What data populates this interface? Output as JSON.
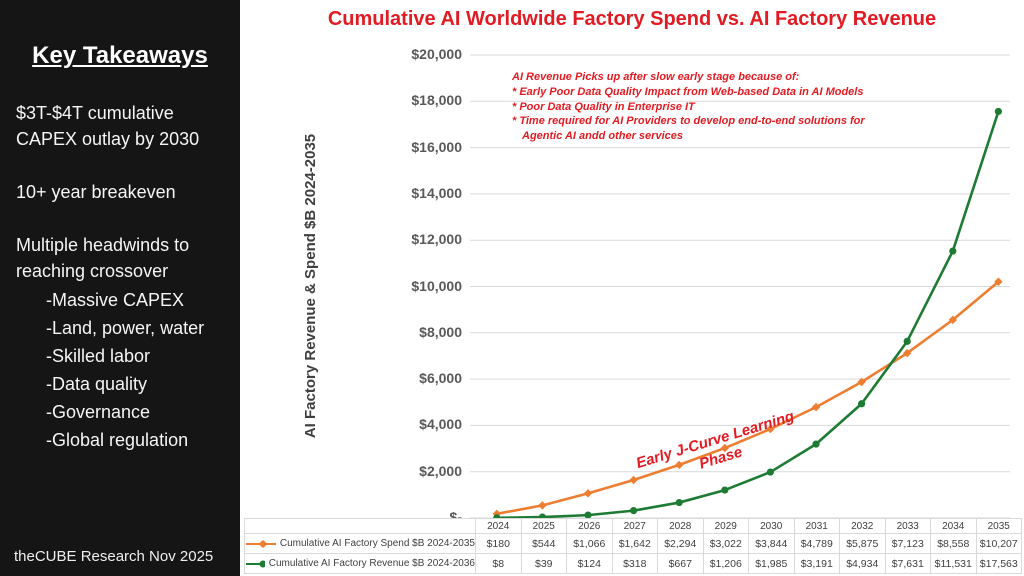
{
  "sidebar": {
    "title": "Key Takeaways",
    "paragraphs": [
      "$3T-$4T cumulative CAPEX outlay by 2030",
      "10+ year breakeven",
      "Multiple headwinds to reaching crossover"
    ],
    "bullets": [
      "-Massive CAPEX",
      "-Land, power, water",
      "-Skilled labor",
      "-Data quality",
      "-Governance",
      "-Global regulation"
    ],
    "footer": "theCUBE Research Nov 2025"
  },
  "chart_data": {
    "type": "line",
    "title": "Cumulative AI Worldwide Factory Spend vs. AI Factory Revenue",
    "xlabel": "",
    "ylabel": "AI Factory Revenue & Spend $B 2024-2035",
    "ylim": [
      0,
      20000
    ],
    "ytick_interval": 2000,
    "ytick_labels": [
      "$-",
      "$2,000",
      "$4,000",
      "$6,000",
      "$8,000",
      "$10,000",
      "$12,000",
      "$14,000",
      "$16,000",
      "$18,000",
      "$20,000"
    ],
    "grid": true,
    "legend_position": "bottom-table-left",
    "categories": [
      "2024",
      "2025",
      "2026",
      "2027",
      "2028",
      "2029",
      "2030",
      "2031",
      "2032",
      "2033",
      "2034",
      "2035"
    ],
    "series": [
      {
        "name": "Cumulative AI Factory Spend $B 2024-2035",
        "color": "#ED7D31",
        "marker": "diamond",
        "values": [
          180,
          544,
          1066,
          1642,
          2294,
          3022,
          3844,
          4789,
          5875,
          7123,
          8558,
          10207
        ],
        "labels": [
          "$180",
          "$544",
          "$1,066",
          "$1,642",
          "$2,294",
          "$3,022",
          "$3,844",
          "$4,789",
          "$5,875",
          "$7,123",
          "$8,558",
          "$10,207"
        ]
      },
      {
        "name": "Cumulative AI Factory Revenue $B 2024-2036",
        "color": "#1E7B34",
        "marker": "circle",
        "values": [
          8,
          39,
          124,
          318,
          667,
          1206,
          1985,
          3191,
          4934,
          7631,
          11531,
          17563
        ],
        "labels": [
          "$8",
          "$39",
          "$124",
          "$318",
          "$667",
          "$1,206",
          "$1,985",
          "$3,191",
          "$4,934",
          "$7,631",
          "$11,531",
          "$17,563"
        ]
      }
    ],
    "annotations": {
      "callout_lines": [
        "AI Revenue Picks up after slow early stage because of:",
        "* Early Poor Data Quality Impact from Web-based Data in AI Models",
        "* Poor Data Quality in Enterprise IT",
        "* Time required for AI Providers to develop end-to-end solutions for",
        "Agentic AI andd other services"
      ],
      "jcurve_lines": [
        "Early J-Curve Learning",
        "Phase"
      ]
    },
    "colors": {
      "title_red": "#E21B23",
      "grid_gray": "#D9D9D9",
      "axis_text": "#595959"
    }
  }
}
